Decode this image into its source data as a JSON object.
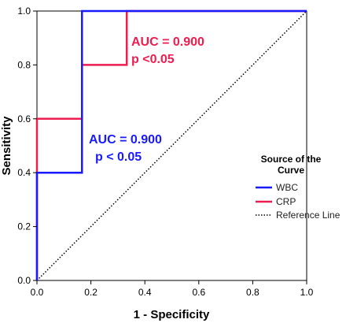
{
  "chart_data": {
    "type": "line",
    "title": "",
    "xlabel": "1 - Specificity",
    "ylabel": "Sensitivity",
    "xlim": [
      0,
      1
    ],
    "ylim": [
      0,
      1
    ],
    "x_ticks": [
      "0.0",
      "0.2",
      "0.4",
      "0.6",
      "0.8",
      "1.0"
    ],
    "y_ticks": [
      "0.0",
      "0.2",
      "0.4",
      "0.6",
      "0.8",
      "1.0"
    ],
    "grid": false,
    "legend": {
      "title": "Source of the Curve",
      "placement": "right",
      "entries": [
        "WBC",
        "CRP",
        "Reference Line"
      ]
    },
    "series": [
      {
        "name": "WBC",
        "color": "#1a1aff",
        "style": "solid",
        "x": [
          0,
          0,
          0.167,
          0.167,
          0.333,
          1.0
        ],
        "y": [
          0,
          0.4,
          0.4,
          1.0,
          1.0,
          1.0
        ]
      },
      {
        "name": "CRP",
        "color": "#ee1c4f",
        "style": "solid",
        "x": [
          0,
          0,
          0.167,
          0.167,
          0.333,
          0.333,
          1.0
        ],
        "y": [
          0,
          0.6,
          0.6,
          0.8,
          0.8,
          1.0,
          1.0
        ]
      },
      {
        "name": "Reference Line",
        "color": "#000000",
        "style": "dotted",
        "x": [
          0,
          1
        ],
        "y": [
          0,
          1
        ]
      }
    ],
    "annotations": [
      {
        "line1": "AUC = 0.900",
        "line2": "p <0.05",
        "color": "#ee1c4f"
      },
      {
        "line1": "AUC = 0.900",
        "line2": "p < 0.05",
        "color": "#1a1aff"
      }
    ]
  }
}
